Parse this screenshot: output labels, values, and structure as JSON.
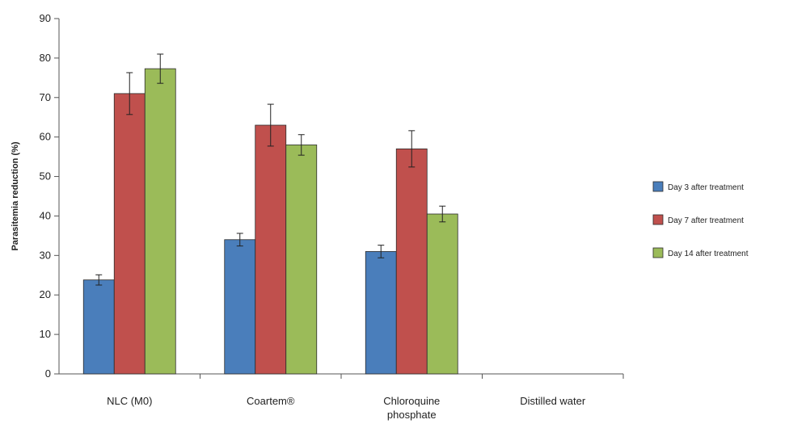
{
  "chart_data": {
    "type": "bar",
    "ylabel": "Parasitemia reduction (%)",
    "xlabel": "",
    "ylim": [
      0,
      90
    ],
    "ytick_step": 10,
    "yticks": [
      "0",
      "10",
      "20",
      "30",
      "40",
      "50",
      "60",
      "70",
      "80",
      "90"
    ],
    "grid": false,
    "legend_position": "right",
    "categories": [
      [
        "NLC (M0)"
      ],
      [
        "Coartem®"
      ],
      [
        "Chloroquine",
        "phosphate"
      ],
      [
        "Distilled water"
      ]
    ],
    "series": [
      {
        "name": "Day 3 after treatment",
        "color": "#4a7ebb",
        "values": [
          23.8,
          34.0,
          31.0,
          null
        ],
        "errors": [
          1.3,
          1.6,
          1.6,
          null
        ]
      },
      {
        "name": "Day 7 after treatment",
        "color": "#c0504d",
        "values": [
          71.0,
          63.0,
          57.0,
          null
        ],
        "errors": [
          5.3,
          5.3,
          4.6,
          null
        ]
      },
      {
        "name": "Day 14 after treatment",
        "color": "#9bbb59",
        "values": [
          77.3,
          58.0,
          40.5,
          null
        ],
        "errors": [
          3.7,
          2.6,
          2.0,
          null
        ]
      }
    ]
  }
}
